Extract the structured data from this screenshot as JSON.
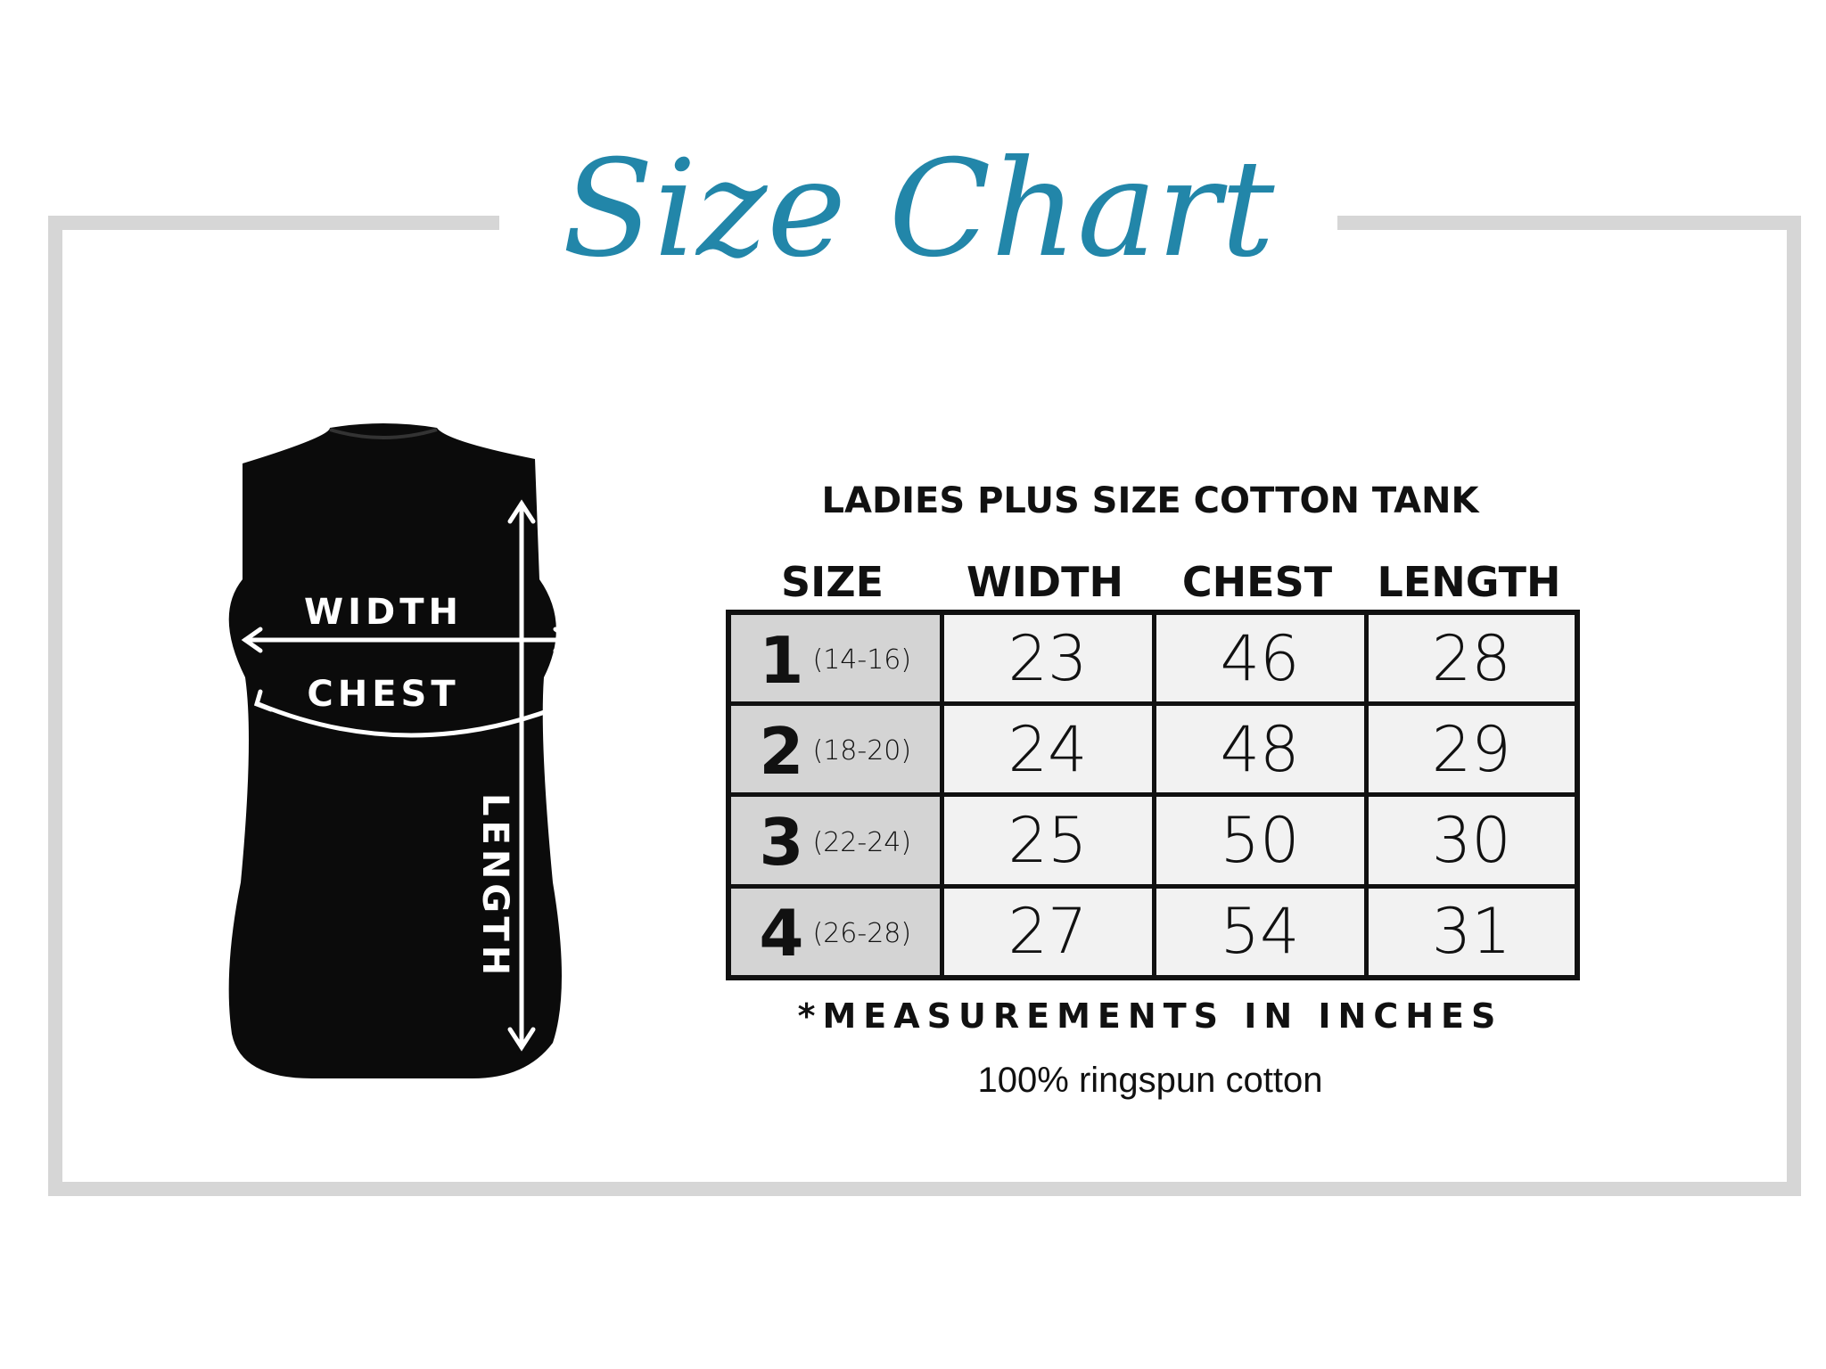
{
  "title": "Size Chart",
  "heading": "LADIES PLUS SIZE COTTON TANK",
  "columns": [
    "SIZE",
    "WIDTH",
    "CHEST",
    "LENGTH"
  ],
  "rows": [
    {
      "size": "1",
      "range": "(14-16)",
      "width": "23",
      "chest": "46",
      "length": "28"
    },
    {
      "size": "2",
      "range": "(18-20)",
      "width": "24",
      "chest": "48",
      "length": "29"
    },
    {
      "size": "3",
      "range": "(22-24)",
      "width": "25",
      "chest": "50",
      "length": "30"
    },
    {
      "size": "4",
      "range": "(26-28)",
      "width": "27",
      "chest": "54",
      "length": "31"
    }
  ],
  "note": "*MEASUREMENTS IN INCHES",
  "material": "100% ringspun cotton",
  "diagram": {
    "width_label": "WIDTH",
    "chest_label": "CHEST",
    "length_label": "LENGTH"
  },
  "colors": {
    "title": "#2286a9",
    "frame": "#d6d6d6",
    "size_cell": "#d4d4d4",
    "value_cell": "#f2f2f2"
  }
}
